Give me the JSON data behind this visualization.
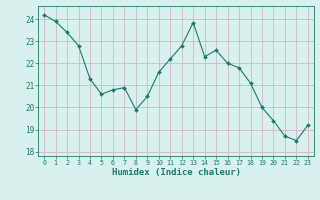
{
  "x": [
    0,
    1,
    2,
    3,
    4,
    5,
    6,
    7,
    8,
    9,
    10,
    11,
    12,
    13,
    14,
    15,
    16,
    17,
    18,
    19,
    20,
    21,
    22,
    23
  ],
  "y": [
    24.2,
    23.9,
    23.4,
    22.8,
    21.3,
    20.6,
    20.8,
    20.9,
    19.9,
    20.5,
    21.6,
    22.2,
    22.8,
    23.85,
    22.3,
    22.6,
    22.0,
    21.8,
    21.1,
    20.0,
    19.4,
    18.7,
    18.5,
    19.2
  ],
  "xlabel": "Humidex (Indice chaleur)",
  "bg_color": "#d8f0ee",
  "grid_color": "#d0b8b8",
  "line_color": "#1a7a6e",
  "marker_color": "#1a7a6e",
  "ylim": [
    17.8,
    24.6
  ],
  "yticks": [
    18,
    19,
    20,
    21,
    22,
    23,
    24
  ],
  "xlim": [
    -0.5,
    23.5
  ],
  "xticks": [
    0,
    1,
    2,
    3,
    4,
    5,
    6,
    7,
    8,
    9,
    10,
    11,
    12,
    13,
    14,
    15,
    16,
    17,
    18,
    19,
    20,
    21,
    22,
    23
  ]
}
